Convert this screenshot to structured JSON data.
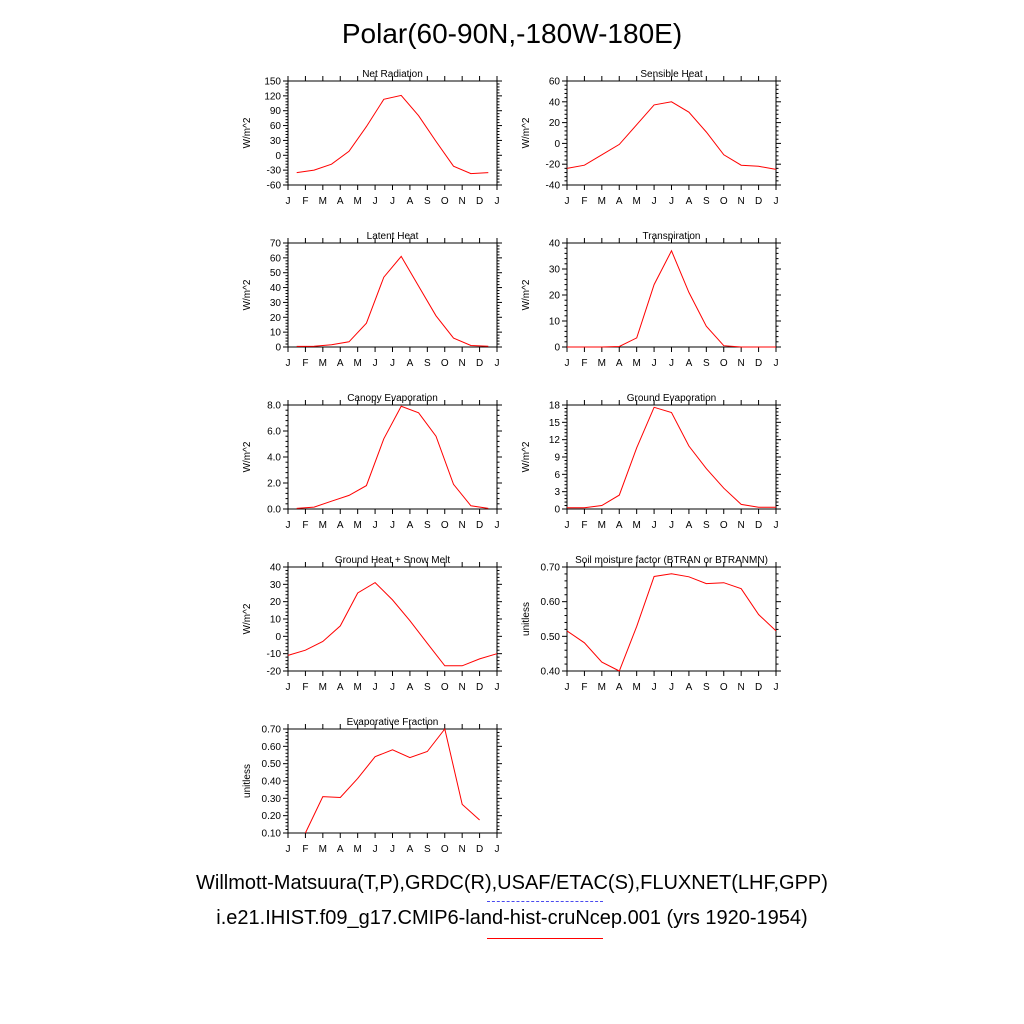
{
  "title": "Polar(60-90N,-180W-180E)",
  "legend": {
    "observations": "Willmott-Matsuura(T,P),GRDC(R),USAF/ETAC(S),FLUXNET(LHF,GPP)",
    "model": "i.e21.IHIST.f09_g17.CMIP6-land-hist-cruNcep.001 (yrs 1920-1954)",
    "observations_color": "#4a4af0",
    "model_color": "#ff0000"
  },
  "chart_data": [
    {
      "type": "line",
      "title": "Net Radiation",
      "ylabel": "W/m^2",
      "categories": [
        "J",
        "F",
        "M",
        "A",
        "M",
        "J",
        "J",
        "A",
        "S",
        "O",
        "N",
        "D",
        "J"
      ],
      "ylim": [
        -60,
        150
      ],
      "yticks": [
        "150",
        "120",
        "90",
        "60",
        "30",
        "0",
        "-30",
        "-60"
      ],
      "x": [
        0.5,
        1.5,
        2.5,
        3.5,
        4.5,
        5.5,
        6.5,
        7.5,
        8.5,
        9.5,
        10.5,
        11.5
      ],
      "series": [
        {
          "color": "#ff0000",
          "values": [
            -35,
            -30,
            -18,
            8,
            58,
            113,
            121,
            80,
            28,
            -22,
            -37,
            -35
          ]
        }
      ]
    },
    {
      "type": "line",
      "title": "Sensible Heat",
      "ylabel": "W/m^2",
      "categories": [
        "J",
        "F",
        "M",
        "A",
        "M",
        "J",
        "J",
        "A",
        "S",
        "O",
        "N",
        "D",
        "J"
      ],
      "ylim": [
        -40,
        60
      ],
      "yticks": [
        "60",
        "40",
        "20",
        "0",
        "-20",
        "-40"
      ],
      "x": [
        0,
        1,
        2,
        3,
        4,
        5,
        6,
        7,
        8,
        9,
        10,
        11,
        12
      ],
      "series": [
        {
          "color": "#ff0000",
          "values": [
            -24,
            -21,
            -11,
            -1,
            18,
            37,
            40,
            30,
            11,
            -11,
            -21,
            -22,
            -25
          ]
        }
      ]
    },
    {
      "type": "line",
      "title": "Latent Heat",
      "ylabel": "W/m^2",
      "categories": [
        "J",
        "F",
        "M",
        "A",
        "M",
        "J",
        "J",
        "A",
        "S",
        "O",
        "N",
        "D",
        "J"
      ],
      "ylim": [
        0,
        70
      ],
      "yticks": [
        "70",
        "60",
        "50",
        "40",
        "30",
        "20",
        "10",
        "0"
      ],
      "x": [
        0.5,
        1.5,
        2.5,
        3.5,
        4.5,
        5.5,
        6.5,
        7.5,
        8.5,
        9.5,
        10.5,
        11.5
      ],
      "series": [
        {
          "color": "#ff0000",
          "values": [
            0.4,
            0.5,
            1.5,
            3.5,
            16,
            47,
            61,
            41,
            21,
            6,
            1,
            0.5
          ]
        }
      ]
    },
    {
      "type": "line",
      "title": "Transpiration",
      "ylabel": "W/m^2",
      "categories": [
        "J",
        "F",
        "M",
        "A",
        "M",
        "J",
        "J",
        "A",
        "S",
        "O",
        "N",
        "D",
        "J"
      ],
      "ylim": [
        0,
        40
      ],
      "yticks": [
        "40",
        "30",
        "20",
        "10",
        "0"
      ],
      "x": [
        0,
        1,
        2,
        3,
        4,
        5,
        6,
        7,
        8,
        9,
        10,
        11,
        12
      ],
      "series": [
        {
          "color": "#ff0000",
          "values": [
            0,
            0,
            0,
            0.2,
            3.5,
            24,
            37,
            21,
            8,
            0.5,
            0,
            0,
            0
          ]
        }
      ]
    },
    {
      "type": "line",
      "title": "Canopy Evaporation",
      "ylabel": "W/m^2",
      "categories": [
        "J",
        "F",
        "M",
        "A",
        "M",
        "J",
        "J",
        "A",
        "S",
        "O",
        "N",
        "D",
        "J"
      ],
      "ylim": [
        0,
        8
      ],
      "yticks": [
        "8.0",
        "6.0",
        "4.0",
        "2.0",
        "0.0"
      ],
      "x": [
        0.5,
        1.5,
        2.5,
        3.5,
        4.5,
        5.5,
        6.5,
        7.5,
        8.5,
        9.5,
        10.5,
        11.5
      ],
      "series": [
        {
          "color": "#ff0000",
          "values": [
            0.05,
            0.15,
            0.6,
            1.05,
            1.8,
            5.4,
            7.9,
            7.4,
            5.6,
            1.9,
            0.25,
            0.05
          ]
        }
      ]
    },
    {
      "type": "line",
      "title": "Ground Evaporation",
      "ylabel": "W/m^2",
      "categories": [
        "J",
        "F",
        "M",
        "A",
        "M",
        "J",
        "J",
        "A",
        "S",
        "O",
        "N",
        "D",
        "J"
      ],
      "ylim": [
        0,
        18
      ],
      "yticks": [
        "18",
        "15",
        "12",
        "9",
        "6",
        "3",
        "0"
      ],
      "x": [
        0,
        1,
        2,
        3,
        4,
        5,
        6,
        7,
        8,
        9,
        10,
        11,
        12
      ],
      "series": [
        {
          "color": "#ff0000",
          "values": [
            0.2,
            0.2,
            0.6,
            2.4,
            10.6,
            17.6,
            16.7,
            10.9,
            7,
            3.6,
            0.8,
            0.3,
            0.3
          ]
        }
      ]
    },
    {
      "type": "line",
      "title": "Ground Heat + Snow Melt",
      "ylabel": "W/m^2",
      "categories": [
        "J",
        "F",
        "M",
        "A",
        "M",
        "J",
        "J",
        "A",
        "S",
        "O",
        "N",
        "D",
        "J"
      ],
      "ylim": [
        -20,
        40
      ],
      "yticks": [
        "40",
        "30",
        "20",
        "10",
        "0",
        "-10",
        "-20"
      ],
      "x": [
        0,
        1,
        2,
        3,
        4,
        5,
        6,
        7,
        8,
        9,
        10,
        11,
        12
      ],
      "series": [
        {
          "color": "#ff0000",
          "values": [
            -11,
            -8,
            -3,
            6,
            25,
            31,
            21,
            9,
            -4,
            -17,
            -17,
            -13,
            -10
          ]
        }
      ]
    },
    {
      "type": "line",
      "title": "Soil moisture factor (BTRAN or BTRANMN)",
      "ylabel": "unitless",
      "categories": [
        "J",
        "F",
        "M",
        "A",
        "M",
        "J",
        "J",
        "A",
        "S",
        "O",
        "N",
        "D",
        "J"
      ],
      "ylim": [
        0.35,
        0.7
      ],
      "yticks": [
        "0.70",
        "0.60",
        "0.50",
        "0.40"
      ],
      "x": [
        0,
        1,
        2,
        3,
        4,
        5,
        6,
        7,
        8,
        9,
        10,
        11,
        12
      ],
      "series": [
        {
          "color": "#ff0000",
          "values": [
            0.485,
            0.445,
            0.38,
            0.35,
            0.5,
            0.668,
            0.677,
            0.667,
            0.644,
            0.647,
            0.627,
            0.54,
            0.485
          ]
        }
      ]
    },
    {
      "type": "line",
      "title": "Evaporative Fraction",
      "ylabel": "unitless",
      "categories": [
        "J",
        "F",
        "M",
        "A",
        "M",
        "J",
        "J",
        "A",
        "S",
        "O",
        "N",
        "D",
        "J"
      ],
      "ylim": [
        0.1,
        0.7
      ],
      "yticks": [
        "0.70",
        "0.60",
        "0.50",
        "0.40",
        "0.30",
        "0.20",
        "0.10"
      ],
      "x": [
        1,
        2,
        3,
        4,
        5,
        6,
        7,
        8,
        9,
        10,
        11
      ],
      "series": [
        {
          "color": "#ff0000",
          "values": [
            0.1,
            0.31,
            0.305,
            0.415,
            0.54,
            0.58,
            0.535,
            0.57,
            0.7,
            0.265,
            0.175
          ]
        }
      ]
    }
  ]
}
